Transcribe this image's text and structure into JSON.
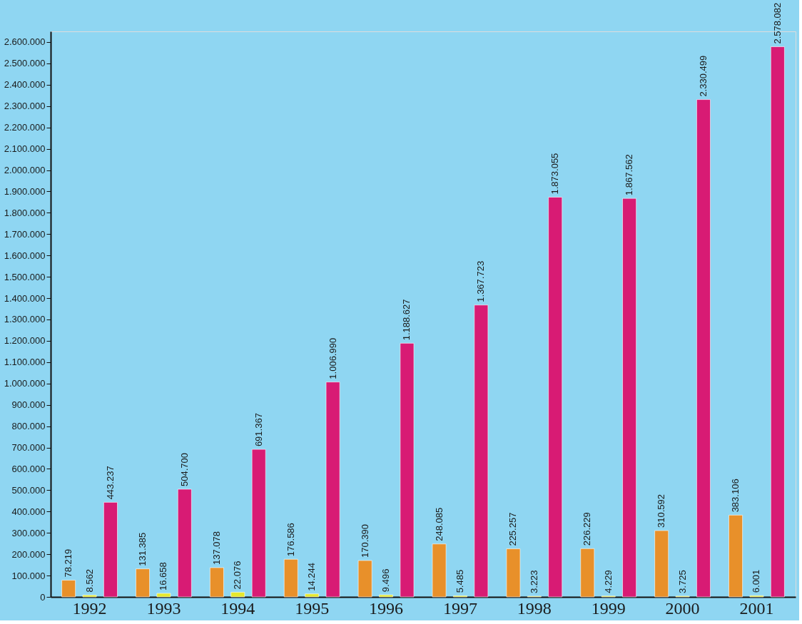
{
  "chart_data": {
    "type": "bar",
    "categories": [
      "1992",
      "1993",
      "1994",
      "1995",
      "1996",
      "1997",
      "1998",
      "1999",
      "2000",
      "2001"
    ],
    "series": [
      {
        "color": "#e8902a",
        "values": [
          78219,
          131385,
          137078,
          176586,
          170390,
          248085,
          225257,
          226229,
          310592,
          383106
        ],
        "value_labels": [
          "78.219",
          "131.385",
          "137.078",
          "176.586",
          "170.390",
          "248.085",
          "225.257",
          "226.229",
          "310.592",
          "383.106"
        ]
      },
      {
        "color": "#e6e82e",
        "values": [
          8562,
          16658,
          22076,
          14244,
          9496,
          5485,
          3223,
          4229,
          3725,
          6001
        ],
        "value_labels": [
          "8.562",
          "16.658",
          "22.076",
          "14.244",
          "9.496",
          "5.485",
          "3.223",
          "4.229",
          "3.725",
          "6.001"
        ]
      },
      {
        "color": "#d81b74",
        "values": [
          443237,
          504700,
          691367,
          1006990,
          1188627,
          1367723,
          1873055,
          1867562,
          2330499,
          2578082
        ],
        "value_labels": [
          "443.237",
          "504.700",
          "691.367",
          "1.006.990",
          "1.188.627",
          "1.367.723",
          "1.873.055",
          "1.867.562",
          "2.330.499",
          "2.578.082"
        ]
      }
    ],
    "ylim": [
      0,
      2650000
    ],
    "yticks": [
      0,
      {
        "value": 100000,
        "label": "100.000"
      },
      {
        "value": 200000,
        "label": "200.000"
      },
      {
        "value": 300000,
        "label": "300.000"
      },
      {
        "value": 400000,
        "label": "400.000"
      },
      {
        "value": 500000,
        "label": "500.000"
      },
      {
        "value": 600000,
        "label": "600.000"
      },
      {
        "value": 700000,
        "label": "700.000"
      },
      {
        "value": 800000,
        "label": "800.000"
      },
      {
        "value": 900000,
        "label": "900.000"
      },
      {
        "value": 1000000,
        "label": "1.000.000"
      },
      {
        "value": 1100000,
        "label": "1.100.000"
      },
      {
        "value": 1200000,
        "label": "1.200.000"
      },
      {
        "value": 1300000,
        "label": "1.300.000"
      },
      {
        "value": 1400000,
        "label": "1.400.000"
      },
      {
        "value": 1500000,
        "label": "1.500.000"
      },
      {
        "value": 1600000,
        "label": "1.600.000"
      },
      {
        "value": 1700000,
        "label": "1.700.000"
      },
      {
        "value": 1800000,
        "label": "1.800.000"
      },
      {
        "value": 1900000,
        "label": "1.900.000"
      },
      {
        "value": 2000000,
        "label": "2.000.000"
      },
      {
        "value": 2100000,
        "label": "2.100.000"
      },
      {
        "value": 2200000,
        "label": "2.200.000"
      },
      {
        "value": 2300000,
        "label": "2.300.000"
      },
      {
        "value": 2400000,
        "label": "2.400.000"
      },
      {
        "value": 2500000,
        "label": "2.500.000"
      },
      {
        "value": 2600000,
        "label": "2.600.000"
      }
    ],
    "grid": false,
    "legend": false
  }
}
